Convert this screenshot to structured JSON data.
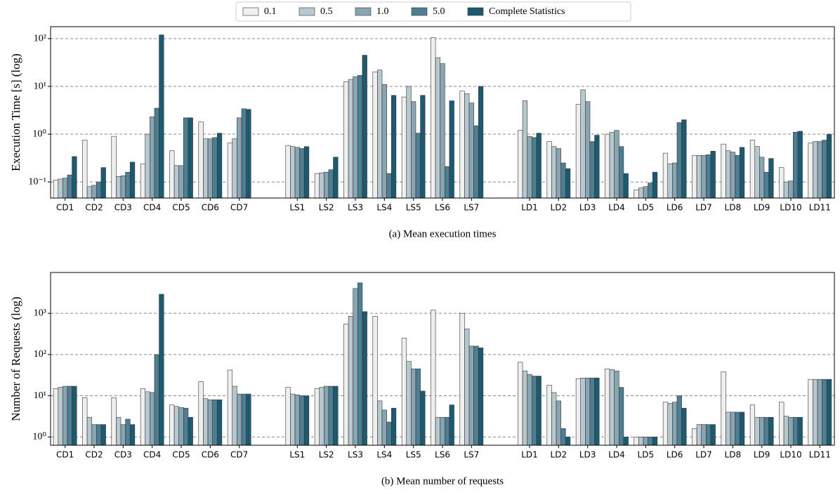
{
  "legend": "upper center",
  "chart_data": [
    {
      "type": "bar",
      "log_scale": true,
      "grid": true,
      "y_label": "Execution Time [s] (log)",
      "caption": "(a) Mean execution times",
      "categories": [
        "CD1",
        "CD2",
        "CD3",
        "CD4",
        "CD5",
        "CD6",
        "CD7",
        null,
        "LS1",
        "LS2",
        "LS3",
        "LS4",
        "LS5",
        "LS6",
        "LS7",
        null,
        "LD1",
        "LD2",
        "LD3",
        "LD4",
        "LD5",
        "LD6",
        "LD7",
        "LD8",
        "LD9",
        "LD10",
        "LD11"
      ],
      "series": [
        {
          "name": "0.1",
          "color": "#efefef",
          "values": [
            0.11,
            0.75,
            0.9,
            0.24,
            0.45,
            1.8,
            0.65,
            null,
            0.58,
            0.15,
            12.5,
            20,
            6,
            105,
            8,
            null,
            1.2,
            0.7,
            4.2,
            1.0,
            0.068,
            0.4,
            0.36,
            0.62,
            0.75,
            0.2,
            0.65
          ]
        },
        {
          "name": "0.5",
          "color": "#b7c8cf",
          "values": [
            0.115,
            0.08,
            0.13,
            1.0,
            0.22,
            0.8,
            0.8,
            null,
            0.55,
            0.155,
            14,
            22,
            10,
            40,
            7,
            null,
            5,
            0.55,
            8.5,
            1.1,
            0.075,
            0.24,
            0.36,
            0.45,
            0.55,
            0.1,
            0.7
          ]
        },
        {
          "name": "1.0",
          "color": "#89a5b1",
          "values": [
            0.12,
            0.085,
            0.135,
            2.3,
            0.22,
            0.8,
            2.2,
            null,
            0.53,
            0.16,
            16,
            11,
            4.8,
            30,
            4.5,
            null,
            0.9,
            0.5,
            4.8,
            1.2,
            0.08,
            0.25,
            0.36,
            0.42,
            0.33,
            0.105,
            0.7
          ]
        },
        {
          "name": "5.0",
          "color": "#4e7e91",
          "values": [
            0.14,
            0.1,
            0.16,
            3.5,
            2.2,
            0.85,
            3.4,
            null,
            0.5,
            0.18,
            17,
            0.15,
            1.05,
            0.21,
            1.5,
            null,
            0.85,
            0.25,
            0.7,
            0.55,
            0.095,
            1.75,
            0.37,
            0.36,
            0.16,
            1.1,
            0.75
          ]
        },
        {
          "name": "Complete Statistics",
          "color": "#1d5a6f",
          "values": [
            0.34,
            0.2,
            0.26,
            120,
            2.2,
            1.05,
            3.3,
            null,
            0.55,
            0.33,
            45,
            6.5,
            6.5,
            5,
            10,
            null,
            1.05,
            0.19,
            0.95,
            0.15,
            0.16,
            2.0,
            0.44,
            0.53,
            0.31,
            1.15,
            1.0
          ]
        }
      ],
      "ylim": [
        0.046,
        178
      ],
      "yticks": [
        {
          "value": 0.1,
          "label": "10⁻¹"
        },
        {
          "value": 1,
          "label": "10⁰"
        },
        {
          "value": 10,
          "label": "10¹"
        },
        {
          "value": 100,
          "label": "10²"
        }
      ]
    },
    {
      "type": "bar",
      "log_scale": true,
      "grid": true,
      "y_label": "Number of Requests (log)",
      "caption": "(b) Mean number of requests",
      "categories": [
        "CD1",
        "CD2",
        "CD3",
        "CD4",
        "CD5",
        "CD6",
        "CD7",
        null,
        "LS1",
        "LS2",
        "LS3",
        "LS4",
        "LS5",
        "LS6",
        "LS7",
        null,
        "LD1",
        "LD2",
        "LD3",
        "LD4",
        "LD5",
        "LD6",
        "LD7",
        "LD8",
        "LD9",
        "LD10",
        "LD11"
      ],
      "series": [
        {
          "color": "#efefef",
          "values": [
            15,
            9,
            9,
            15,
            6,
            22,
            42,
            null,
            16,
            15,
            550,
            850,
            250,
            1200,
            1000,
            null,
            65,
            18,
            26,
            45,
            1.0,
            7,
            1.6,
            38,
            6,
            7,
            25
          ]
        },
        {
          "color": "#b7c8cf",
          "values": [
            16,
            3,
            3,
            12.5,
            5.5,
            8.5,
            17,
            null,
            11,
            16,
            850,
            7.5,
            68,
            3,
            420,
            null,
            40,
            12,
            27,
            43,
            1.0,
            6.5,
            2,
            4,
            3,
            3.2,
            25
          ]
        },
        {
          "color": "#89a5b1",
          "values": [
            17,
            2,
            2,
            12,
            5.2,
            8,
            11,
            null,
            10.5,
            17,
            4000,
            4.5,
            45,
            3,
            160,
            null,
            33,
            7.5,
            27,
            40,
            1.0,
            7,
            2,
            4,
            3,
            3,
            25
          ]
        },
        {
          "color": "#4e7e91",
          "values": [
            17,
            2,
            2.7,
            100,
            5,
            8,
            11,
            null,
            10,
            17,
            5500,
            2.3,
            45,
            3,
            160,
            null,
            30,
            1.6,
            27,
            16,
            1.0,
            10,
            2,
            4,
            3,
            3,
            25
          ]
        },
        {
          "color": "#1d5a6f",
          "values": [
            17,
            2,
            2,
            2900,
            3,
            8,
            11,
            null,
            10,
            17,
            1100,
            5,
            13,
            6,
            145,
            null,
            30,
            1.0,
            27,
            1.0,
            1.0,
            5,
            2,
            4,
            3,
            3,
            25
          ]
        }
      ],
      "ylim": [
        0.63,
        9800
      ],
      "yticks": [
        {
          "value": 1,
          "label": "10⁰"
        },
        {
          "value": 10,
          "label": "10¹"
        },
        {
          "value": 100,
          "label": "10²"
        },
        {
          "value": 1000,
          "label": "10³"
        }
      ]
    }
  ]
}
